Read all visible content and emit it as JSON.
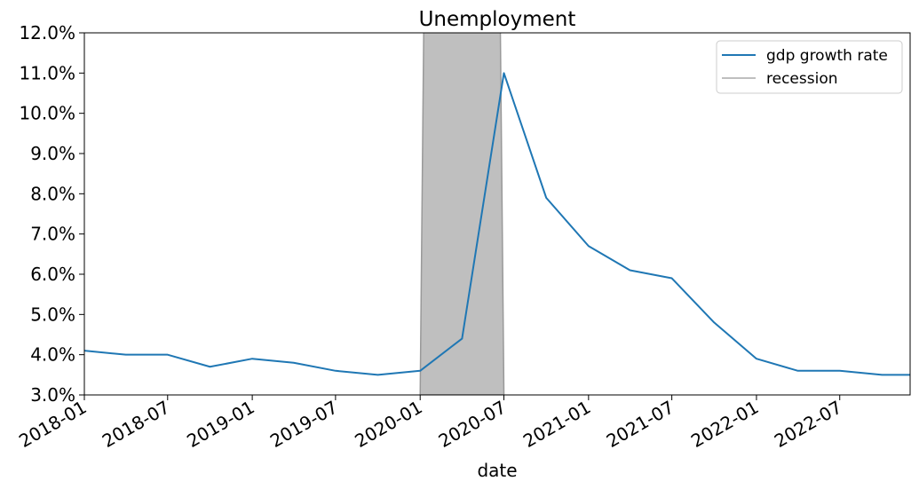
{
  "chart_data": {
    "type": "line",
    "title": "Unemployment",
    "xlabel": "date",
    "ylabel": "",
    "xlim": [
      "2018-01-01",
      "2022-12-01"
    ],
    "ylim": [
      3.0,
      12.0
    ],
    "grid": false,
    "legend_position": "top-right",
    "x_ticks": [
      "2018-01",
      "2018-07",
      "2019-01",
      "2019-07",
      "2020-01",
      "2020-07",
      "2021-01",
      "2021-07",
      "2022-01",
      "2022-07"
    ],
    "y_ticks": [
      "3.0%",
      "4.0%",
      "5.0%",
      "6.0%",
      "7.0%",
      "8.0%",
      "9.0%",
      "10.0%",
      "11.0%",
      "12.0%"
    ],
    "y_tick_values": [
      3,
      4,
      5,
      6,
      7,
      8,
      9,
      10,
      11,
      12
    ],
    "series": [
      {
        "name": "gdp growth rate",
        "color": "#1f77b4",
        "x": [
          "2018-01-01",
          "2018-04-01",
          "2018-07-01",
          "2018-10-01",
          "2019-01-01",
          "2019-04-01",
          "2019-07-01",
          "2019-10-01",
          "2020-01-01",
          "2020-04-01",
          "2020-07-01",
          "2020-10-01",
          "2021-01-01",
          "2021-04-01",
          "2021-07-01",
          "2021-10-01",
          "2022-01-01",
          "2022-04-01",
          "2022-07-01",
          "2022-10-01",
          "2022-12-01"
        ],
        "values": [
          4.1,
          4.0,
          4.0,
          3.7,
          3.9,
          3.8,
          3.6,
          3.5,
          3.6,
          4.4,
          11.0,
          7.9,
          6.7,
          6.1,
          5.9,
          4.8,
          3.9,
          3.6,
          3.6,
          3.5,
          3.5
        ]
      },
      {
        "name": "recession",
        "color": "#bfbfbf",
        "edge_color": "#999999",
        "x_start": "2020-01-01",
        "x_end": "2020-07-01"
      }
    ]
  }
}
